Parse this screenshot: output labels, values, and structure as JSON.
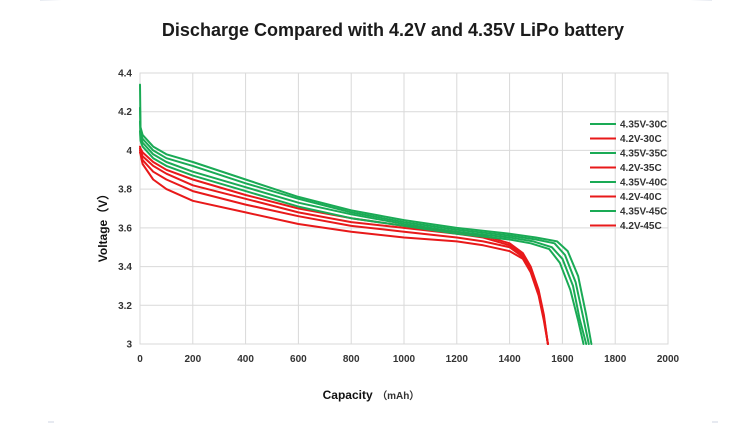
{
  "chart_data": {
    "type": "line",
    "title": "Discharge Compared with 4.2V and 4.35V LiPo battery",
    "xlabel": "Capacity",
    "xlabel_unit": "（mAh）",
    "ylabel": "Voltage（V）",
    "xlim": [
      0,
      2000
    ],
    "ylim": [
      3,
      4.4
    ],
    "x_ticks": [
      "0",
      "200",
      "400",
      "600",
      "800",
      "1000",
      "1200",
      "1400",
      "1600",
      "1800",
      "2000"
    ],
    "y_ticks": [
      "3",
      "3.2",
      "3.4",
      "3.6",
      "3.8",
      "4",
      "4.2",
      "4.4"
    ],
    "grid": true,
    "legend_position": "right",
    "colors": {
      "4.35V": "#1aaa55",
      "4.2V": "#e8191a"
    },
    "series": [
      {
        "name": "4.35V-30C",
        "color": "#1aaa55",
        "x": [
          0,
          2,
          10,
          50,
          100,
          200,
          400,
          600,
          800,
          1000,
          1200,
          1400,
          1500,
          1580,
          1620,
          1660,
          1690,
          1710
        ],
        "y": [
          4.34,
          4.12,
          4.08,
          4.02,
          3.98,
          3.94,
          3.85,
          3.76,
          3.69,
          3.64,
          3.6,
          3.57,
          3.55,
          3.53,
          3.48,
          3.35,
          3.15,
          3.0
        ]
      },
      {
        "name": "4.2V-30C",
        "color": "#e8191a",
        "x": [
          0,
          2,
          10,
          50,
          100,
          200,
          400,
          600,
          800,
          1000,
          1200,
          1300,
          1400,
          1450,
          1480,
          1510,
          1530,
          1545
        ],
        "y": [
          4.02,
          4.01,
          3.99,
          3.94,
          3.9,
          3.85,
          3.77,
          3.7,
          3.65,
          3.61,
          3.58,
          3.56,
          3.52,
          3.47,
          3.4,
          3.28,
          3.15,
          3.0
        ]
      },
      {
        "name": "4.35V-35C",
        "color": "#1aaa55",
        "x": [
          0,
          2,
          10,
          50,
          100,
          200,
          400,
          600,
          800,
          1000,
          1200,
          1400,
          1500,
          1570,
          1610,
          1650,
          1680,
          1700
        ],
        "y": [
          4.22,
          4.09,
          4.06,
          4.0,
          3.96,
          3.92,
          3.83,
          3.75,
          3.68,
          3.63,
          3.59,
          3.56,
          3.54,
          3.52,
          3.46,
          3.32,
          3.13,
          3.0
        ]
      },
      {
        "name": "4.2V-35C",
        "color": "#e8191a",
        "x": [
          0,
          2,
          10,
          50,
          100,
          200,
          400,
          600,
          800,
          1000,
          1200,
          1300,
          1400,
          1450,
          1480,
          1510,
          1530,
          1545
        ],
        "y": [
          4.01,
          4.0,
          3.97,
          3.92,
          3.88,
          3.82,
          3.75,
          3.68,
          3.63,
          3.6,
          3.57,
          3.55,
          3.51,
          3.46,
          3.39,
          3.27,
          3.14,
          3.0
        ]
      },
      {
        "name": "4.35V-40C",
        "color": "#1aaa55",
        "x": [
          0,
          2,
          10,
          50,
          100,
          200,
          400,
          600,
          800,
          1000,
          1200,
          1400,
          1490,
          1560,
          1600,
          1640,
          1665,
          1690
        ],
        "y": [
          4.15,
          4.07,
          4.04,
          3.98,
          3.94,
          3.89,
          3.81,
          3.73,
          3.67,
          3.62,
          3.58,
          3.55,
          3.53,
          3.5,
          3.44,
          3.3,
          3.13,
          3.0
        ]
      },
      {
        "name": "4.2V-40C",
        "color": "#e8191a",
        "x": [
          0,
          2,
          10,
          50,
          100,
          200,
          400,
          600,
          800,
          1000,
          1200,
          1300,
          1400,
          1450,
          1480,
          1510,
          1530,
          1545
        ],
        "y": [
          4.0,
          3.99,
          3.95,
          3.89,
          3.85,
          3.79,
          3.72,
          3.66,
          3.61,
          3.58,
          3.55,
          3.53,
          3.5,
          3.45,
          3.38,
          3.26,
          3.13,
          3.0
        ]
      },
      {
        "name": "4.35V-45C",
        "color": "#1aaa55",
        "x": [
          0,
          2,
          10,
          50,
          100,
          200,
          400,
          600,
          800,
          1000,
          1200,
          1400,
          1480,
          1550,
          1590,
          1630,
          1660,
          1680
        ],
        "y": [
          4.1,
          4.05,
          4.02,
          3.96,
          3.92,
          3.87,
          3.79,
          3.71,
          3.65,
          3.61,
          3.57,
          3.54,
          3.52,
          3.49,
          3.42,
          3.28,
          3.12,
          3.0
        ]
      },
      {
        "name": "4.2V-45C",
        "color": "#e8191a",
        "x": [
          0,
          2,
          10,
          50,
          100,
          200,
          400,
          600,
          800,
          1000,
          1200,
          1300,
          1400,
          1450,
          1480,
          1510,
          1530,
          1545
        ],
        "y": [
          3.99,
          3.98,
          3.93,
          3.85,
          3.8,
          3.74,
          3.68,
          3.62,
          3.58,
          3.55,
          3.53,
          3.51,
          3.48,
          3.44,
          3.37,
          3.25,
          3.12,
          3.0
        ]
      }
    ]
  }
}
